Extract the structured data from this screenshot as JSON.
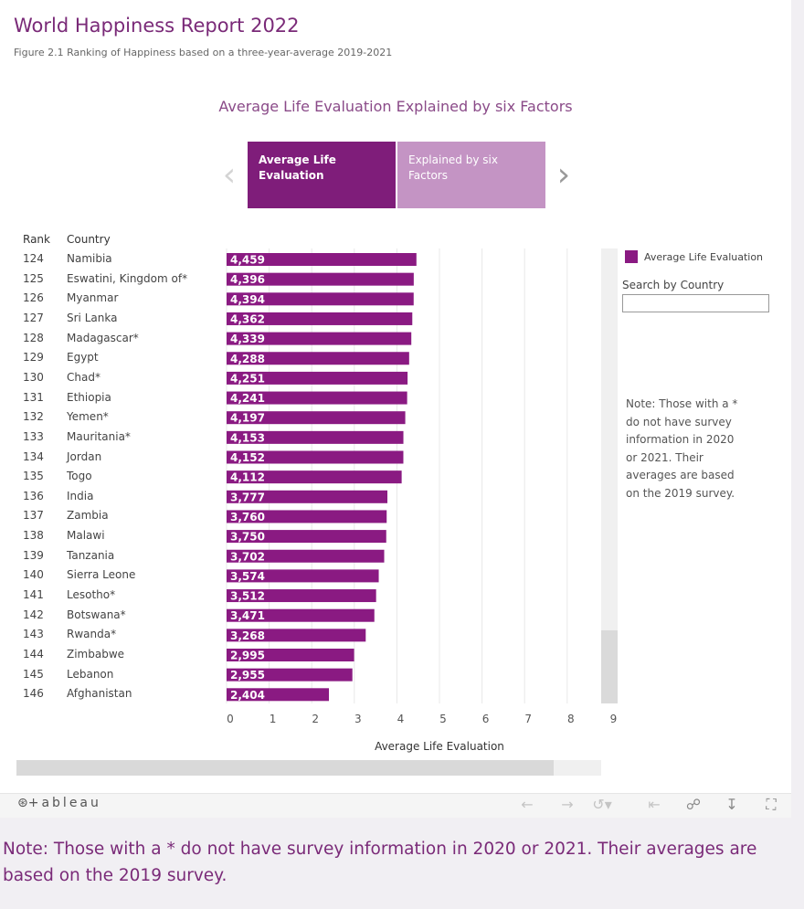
{
  "header": {
    "title": "World Happiness Report 2022",
    "subtitle": "Figure 2.1 Ranking of Happiness based on a three-year-average 2019-2021",
    "section_title": "Average Life Evaluation Explained by six Factors"
  },
  "tabs": [
    {
      "label": "Average Life Evaluation"
    },
    {
      "label": "Explained by six Factors"
    }
  ],
  "nav": {
    "prev_icon": "chevron-left-icon",
    "next_icon": "chevron-right-icon"
  },
  "table": {
    "rank_header": "Rank",
    "country_header": "Country"
  },
  "chart_data": {
    "type": "bar",
    "orientation": "horizontal",
    "ranks": [
      124,
      125,
      126,
      127,
      128,
      129,
      130,
      131,
      132,
      133,
      134,
      135,
      136,
      137,
      138,
      139,
      140,
      141,
      142,
      143,
      144,
      145,
      146
    ],
    "categories": [
      "Namibia",
      "Eswatini, Kingdom of*",
      "Myanmar",
      "Sri Lanka",
      "Madagascar*",
      "Egypt",
      "Chad*",
      "Ethiopia",
      "Yemen*",
      "Mauritania*",
      "Jordan",
      "Togo",
      "India",
      "Zambia",
      "Malawi",
      "Tanzania",
      "Sierra Leone",
      "Lesotho*",
      "Botswana*",
      "Rwanda*",
      "Zimbabwe",
      "Lebanon",
      "Afghanistan"
    ],
    "values": [
      4.459,
      4.396,
      4.394,
      4.362,
      4.339,
      4.288,
      4.251,
      4.241,
      4.197,
      4.153,
      4.152,
      4.112,
      3.777,
      3.76,
      3.75,
      3.702,
      3.574,
      3.512,
      3.471,
      3.268,
      2.995,
      2.955,
      2.404
    ],
    "value_labels": [
      "4,459",
      "4,396",
      "4,394",
      "4,362",
      "4,339",
      "4,288",
      "4,251",
      "4,241",
      "4,197",
      "4,153",
      "4,152",
      "4,112",
      "3,777",
      "3,760",
      "3,750",
      "3,702",
      "3,574",
      "3,512",
      "3,471",
      "3,268",
      "2,995",
      "2,955",
      "2,404"
    ],
    "xlabel": "Average Life Evaluation",
    "xlim": [
      0,
      9
    ],
    "xticks": [
      0,
      1,
      2,
      3,
      4,
      5,
      6,
      7,
      8,
      9
    ],
    "grid": true,
    "legend": {
      "label": "Average Life Evaluation",
      "placement": "right"
    },
    "bar_color": "#8a1a82"
  },
  "sidebar": {
    "search_label": "Search by Country",
    "search_value": "",
    "note": "Note: Those with a * do not have survey information in 2020 or 2021. Their averages are based on the 2019 survey."
  },
  "toolbar": {
    "logo": "+ableau",
    "icons": [
      "undo-icon",
      "redo-icon",
      "revert-icon",
      "reset-icon",
      "share-icon",
      "download-icon",
      "fullscreen-icon"
    ]
  },
  "footer_note": "Note: Those with a * do not have survey information in 2020 or 2021. Their averages are based on the 2019 survey."
}
